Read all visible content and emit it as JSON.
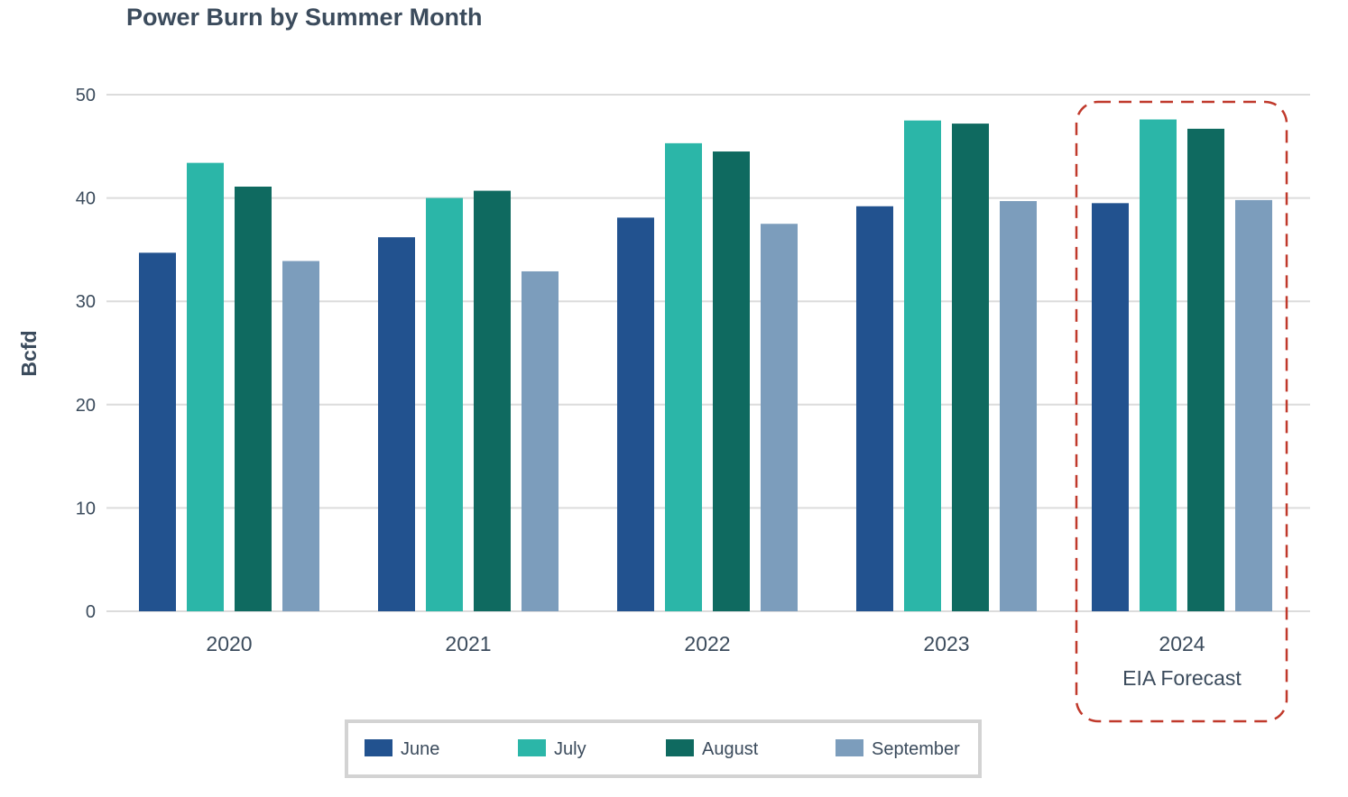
{
  "chart_data": {
    "type": "bar",
    "title": "Power Burn by Summer Month",
    "xlabel": "",
    "ylabel": "Bcfd",
    "ylim": [
      0,
      50
    ],
    "yticks": [
      0,
      10,
      20,
      30,
      40,
      50
    ],
    "grid": true,
    "legend_position": "bottom",
    "categories": [
      "2020",
      "2021",
      "2022",
      "2023",
      "2024"
    ],
    "category_sublabels": [
      "",
      "",
      "",
      "",
      "EIA Forecast"
    ],
    "highlight": {
      "category": "2024",
      "style": "dashed box",
      "color": "#c0392b"
    },
    "series": [
      {
        "name": "June",
        "color": "#22528f",
        "values": [
          34.7,
          36.2,
          38.1,
          39.2,
          39.5
        ]
      },
      {
        "name": "July",
        "color": "#2bb6a8",
        "values": [
          43.4,
          40.0,
          45.3,
          47.5,
          47.6
        ]
      },
      {
        "name": "August",
        "color": "#0f6a60",
        "values": [
          41.1,
          40.7,
          44.5,
          47.2,
          46.7
        ]
      },
      {
        "name": "September",
        "color": "#7c9dbc",
        "values": [
          33.9,
          32.9,
          37.5,
          39.7,
          39.8
        ]
      }
    ]
  }
}
